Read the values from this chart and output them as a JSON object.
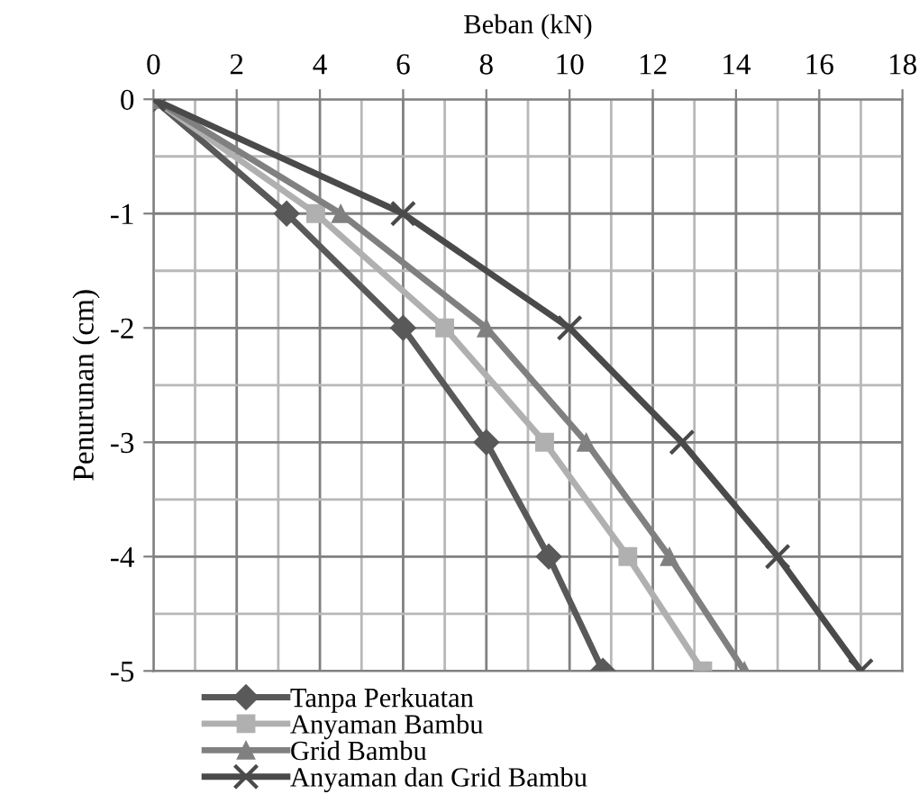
{
  "chart_data": {
    "type": "line",
    "xlabel": "Beban (kN)",
    "ylabel": "Penurunan (cm)",
    "xlim": [
      0,
      18
    ],
    "xticks": [
      0,
      2,
      4,
      6,
      8,
      10,
      12,
      14,
      16,
      18
    ],
    "ylim": [
      -5,
      0
    ],
    "yticks": [
      0,
      -1,
      -2,
      -3,
      -4,
      -5
    ],
    "grid": true,
    "legend": "bottom",
    "series": [
      {
        "name": "Tanpa Perkuatan",
        "color": "#595959",
        "marker": "diamond",
        "x": [
          0,
          3.2,
          6.0,
          8.0,
          9.5,
          10.8
        ],
        "values": [
          0,
          -1,
          -2,
          -3,
          -4,
          -5
        ]
      },
      {
        "name": "Anyaman Bambu",
        "color": "#b0b0b0",
        "marker": "square",
        "x": [
          0,
          3.9,
          7.0,
          9.4,
          11.4,
          13.2
        ],
        "values": [
          0,
          -1,
          -2,
          -3,
          -4,
          -5
        ]
      },
      {
        "name": "Grid Bambu",
        "color": "#808080",
        "marker": "triangle",
        "x": [
          0,
          4.5,
          8.0,
          10.4,
          12.4,
          14.2
        ],
        "values": [
          0,
          -1,
          -2,
          -3,
          -4,
          -5
        ]
      },
      {
        "name": "Anyaman dan Grid Bambu",
        "color": "#4a4a4a",
        "marker": "cross",
        "x": [
          0,
          6.0,
          10.0,
          12.7,
          15.0,
          17.0
        ],
        "values": [
          0,
          -1,
          -2,
          -3,
          -4,
          -5
        ]
      }
    ]
  }
}
